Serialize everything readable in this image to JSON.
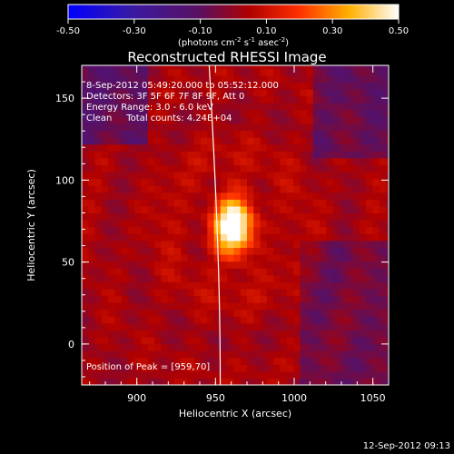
{
  "chart_data": {
    "type": "heatmap",
    "title": "Reconstructed RHESSI Image",
    "colorbar": {
      "ticks": [
        "-0.50",
        "-0.30",
        "-0.10",
        "0.10",
        "0.30",
        "0.50"
      ],
      "range": [
        -0.5,
        0.5
      ],
      "units_prefix": "(photons cm",
      "units_exp1": "-2",
      "units_mid": " s",
      "units_exp2": "-1",
      "units_mid2": " asec",
      "units_exp3": "-2",
      "units_suffix": ")"
    },
    "xlabel": "Heliocentric X (arcsec)",
    "ylabel": "Heliocentric Y (arcsec)",
    "xlim": [
      865,
      1060
    ],
    "ylim": [
      -25,
      170
    ],
    "xticks": [
      "900",
      "950",
      "1000",
      "1050"
    ],
    "yticks": [
      "0",
      "50",
      "100",
      "150"
    ],
    "peak": {
      "x": 959,
      "y": 70,
      "value": 0.5
    },
    "limb": {
      "x_at_top": 946,
      "x_at_bottom": 953
    },
    "annotations": {
      "time_range": " 8-Sep-2012 05:49:20.000 to 05:52:12.000",
      "detectors": "Detectors: 3F 5F 6F 7F 8F 9F, Att 0",
      "energy": "Energy Range: 3.0 - 6.0 keV",
      "clean": "Clean     Total counts: 4.24E+04",
      "peak_label": "Position of Peak = [959,70]"
    },
    "colors": {
      "background": "#000000",
      "axes": "#ffffff"
    }
  },
  "footer": {
    "timestamp": "12-Sep-2012 09:13"
  }
}
